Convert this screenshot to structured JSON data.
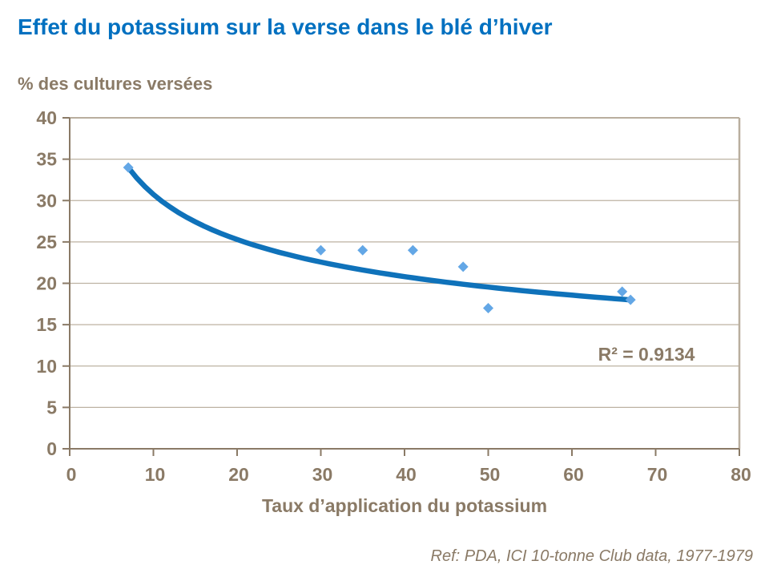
{
  "header": {
    "title": "Effet du potassium sur la verse dans le blé d’hiver"
  },
  "chart_data": {
    "type": "scatter",
    "title": "Effet du potassium sur la verse dans le blé d’hiver",
    "ylabel": "% des cultures versées",
    "xlabel": "Taux d’application du potassium",
    "xlim": [
      0,
      80
    ],
    "ylim": [
      0,
      40
    ],
    "x_ticks": [
      0,
      10,
      20,
      30,
      40,
      50,
      60,
      70,
      80
    ],
    "y_ticks": [
      0,
      5,
      10,
      15,
      20,
      25,
      30,
      35,
      40
    ],
    "grid": "horizontal",
    "legend": "none",
    "points": [
      {
        "x": 7,
        "y": 34
      },
      {
        "x": 30,
        "y": 24
      },
      {
        "x": 35,
        "y": 24
      },
      {
        "x": 41,
        "y": 24
      },
      {
        "x": 47,
        "y": 22
      },
      {
        "x": 50,
        "y": 17
      },
      {
        "x": 66,
        "y": 19
      },
      {
        "x": 67,
        "y": 18
      }
    ],
    "trendline": {
      "kind": "power",
      "a": 58.8,
      "b": -0.2816,
      "x_start": 7,
      "x_end": 67,
      "r2": 0.9134
    },
    "r2_label": "R² = 0.9134",
    "colors": {
      "title": "#0070c0",
      "axis_text": "#8a7a66",
      "axis_line": "#8a7a66",
      "grid": "#bdb2a2",
      "plot_border": "#b9ae9e",
      "marker": "#63a7e6",
      "trend": "#0f72ba"
    }
  },
  "footer": {
    "reference": "Ref: PDA, ICI 10-tonne Club data, 1977-1979"
  }
}
